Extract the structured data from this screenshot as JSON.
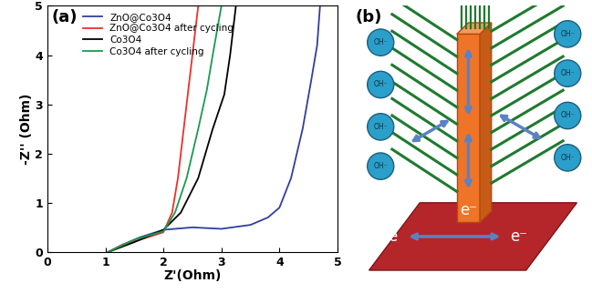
{
  "chart_data": {
    "type": "line",
    "annotations": [
      "(a)"
    ],
    "x_label": "Z'(Ohm)",
    "y_label": "-Z'' (Ohm)",
    "xlim": [
      0,
      5
    ],
    "ylim": [
      0,
      5
    ],
    "xticks": [
      0,
      1,
      2,
      3,
      4,
      5
    ],
    "yticks": [
      0,
      1,
      2,
      3,
      4,
      5
    ],
    "legend": "upper left",
    "series": [
      {
        "name": "ZnO@Co3O4",
        "color": "#2f3fa0",
        "x": [
          1.05,
          1.3,
          1.6,
          2.0,
          2.5,
          3.0,
          3.5,
          3.8,
          4.0,
          4.2,
          4.4,
          4.55,
          4.65,
          4.7
        ],
        "values": [
          0.0,
          0.15,
          0.3,
          0.45,
          0.5,
          0.47,
          0.55,
          0.7,
          0.9,
          1.5,
          2.5,
          3.5,
          4.2,
          5.0
        ]
      },
      {
        "name": "ZnO@Co3O4 after cycling",
        "color": "#e8322b",
        "x": [
          1.05,
          1.3,
          1.6,
          2.0,
          2.15,
          2.25,
          2.35,
          2.45,
          2.55,
          2.6
        ],
        "values": [
          0.0,
          0.15,
          0.25,
          0.4,
          0.8,
          1.5,
          2.5,
          3.5,
          4.5,
          5.0
        ]
      },
      {
        "name": "Co3O4",
        "color": "#000000",
        "x": [
          1.05,
          1.5,
          2.0,
          2.3,
          2.6,
          2.85,
          3.05,
          3.15,
          3.25
        ],
        "values": [
          0.0,
          0.2,
          0.45,
          0.8,
          1.5,
          2.5,
          3.2,
          4.0,
          5.0
        ]
      },
      {
        "name": "Co3O4 after cycling",
        "color": "#1a9a50",
        "x": [
          1.05,
          1.5,
          2.0,
          2.2,
          2.4,
          2.6,
          2.75,
          2.85,
          3.0
        ],
        "values": [
          0.0,
          0.25,
          0.42,
          0.8,
          1.5,
          2.5,
          3.3,
          4.0,
          5.0
        ]
      }
    ]
  },
  "diagram": {
    "panel_label": "(b)",
    "ion_labels": [
      "OH⁻",
      "OH⁻",
      "OH⁻",
      "OH⁻",
      "OH⁻",
      "OH⁻",
      "OH⁻",
      "OH⁻"
    ],
    "electron_labels": [
      "e⁻",
      "e",
      "e⁻"
    ]
  }
}
